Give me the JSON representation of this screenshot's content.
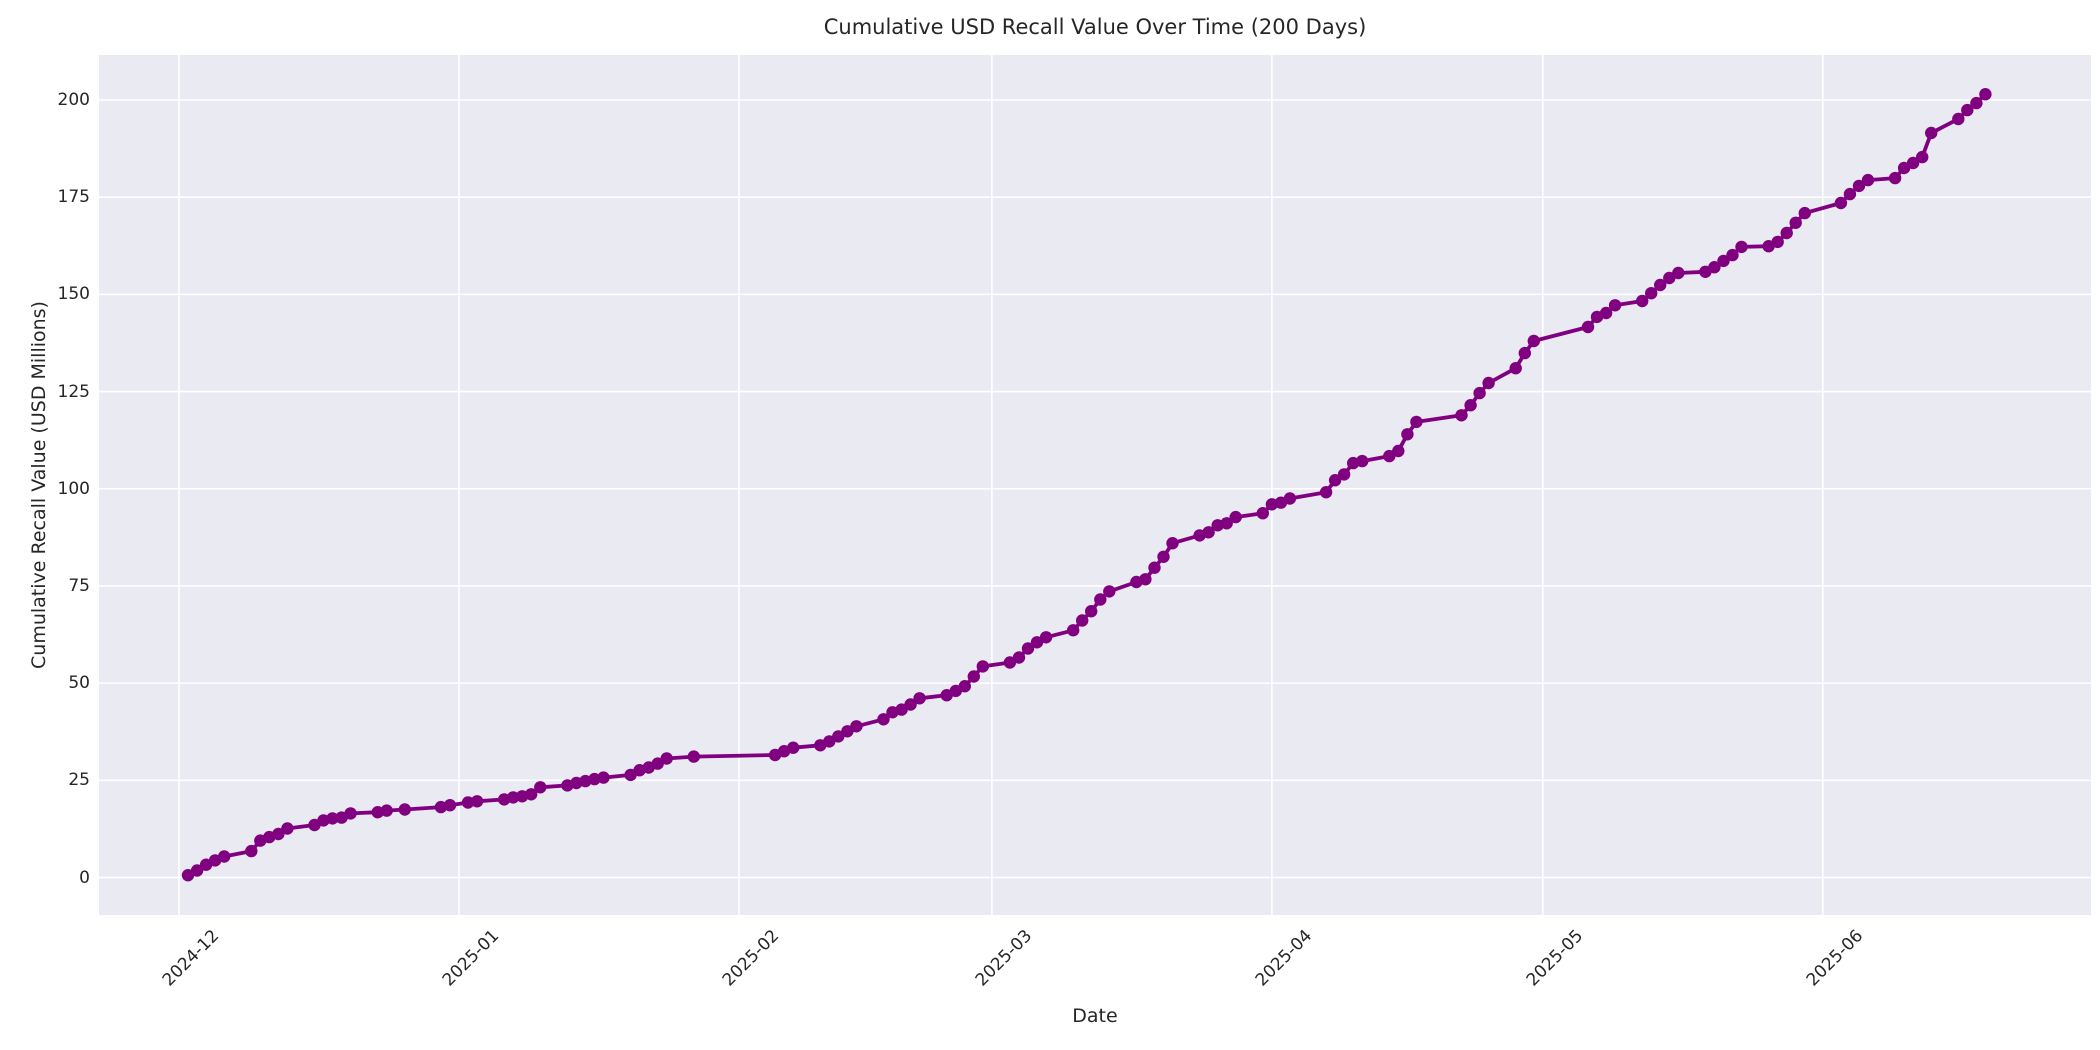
{
  "figure": {
    "title": "Cumulative USD Recall Value Over Time (200 Days)",
    "xlabel": "Date",
    "ylabel": "Cumulative Recall Value (USD Millions)"
  },
  "style": {
    "figure_bg": "#ffffff",
    "axes_bg": "#eaeaf2",
    "grid_color": "#ffffff",
    "text_color": "#262626",
    "line_color": "#800080"
  },
  "chart_data": {
    "type": "line",
    "title": "Cumulative USD Recall Value Over Time (200 Days)",
    "xlabel": "Date",
    "ylabel": "Cumulative Recall Value (USD Millions)",
    "grid": true,
    "legend": "none",
    "marker": "circle",
    "line_color": "#800080",
    "ylim": [
      -9.5,
      211.5
    ],
    "y_ticks": [
      0,
      25,
      50,
      75,
      100,
      125,
      150,
      175,
      200
    ],
    "x_ticks": [
      {
        "label": "2024-12",
        "date": "2024-12-01"
      },
      {
        "label": "2025-01",
        "date": "2025-01-01"
      },
      {
        "label": "2025-02",
        "date": "2025-02-01"
      },
      {
        "label": "2025-03",
        "date": "2025-03-01"
      },
      {
        "label": "2025-04",
        "date": "2025-04-01"
      },
      {
        "label": "2025-05",
        "date": "2025-05-01"
      },
      {
        "label": "2025-06",
        "date": "2025-06-01"
      }
    ],
    "series": [
      {
        "name": "Cumulative Recall Value",
        "points": [
          [
            "2024-12-02",
            0.6
          ],
          [
            "2024-12-03",
            1.8
          ],
          [
            "2024-12-04",
            3.3
          ],
          [
            "2024-12-05",
            4.4
          ],
          [
            "2024-12-06",
            5.4
          ],
          [
            "2024-12-09",
            6.8
          ],
          [
            "2024-12-10",
            9.5
          ],
          [
            "2024-12-11",
            10.4
          ],
          [
            "2024-12-12",
            11.2
          ],
          [
            "2024-12-13",
            12.6
          ],
          [
            "2024-12-16",
            13.5
          ],
          [
            "2024-12-17",
            14.7
          ],
          [
            "2024-12-18",
            15.2
          ],
          [
            "2024-12-19",
            15.4
          ],
          [
            "2024-12-20",
            16.5
          ],
          [
            "2024-12-23",
            16.8
          ],
          [
            "2024-12-24",
            17.2
          ],
          [
            "2024-12-26",
            17.5
          ],
          [
            "2024-12-30",
            18.1
          ],
          [
            "2024-12-31",
            18.6
          ],
          [
            "2025-01-02",
            19.3
          ],
          [
            "2025-01-03",
            19.6
          ],
          [
            "2025-01-06",
            20.1
          ],
          [
            "2025-01-07",
            20.6
          ],
          [
            "2025-01-08",
            20.9
          ],
          [
            "2025-01-09",
            21.4
          ],
          [
            "2025-01-10",
            23.2
          ],
          [
            "2025-01-13",
            23.7
          ],
          [
            "2025-01-14",
            24.3
          ],
          [
            "2025-01-15",
            24.8
          ],
          [
            "2025-01-16",
            25.3
          ],
          [
            "2025-01-17",
            25.7
          ],
          [
            "2025-01-20",
            26.4
          ],
          [
            "2025-01-21",
            27.6
          ],
          [
            "2025-01-22",
            28.3
          ],
          [
            "2025-01-23",
            29.3
          ],
          [
            "2025-01-24",
            30.6
          ],
          [
            "2025-01-27",
            31.1
          ],
          [
            "2025-02-05",
            31.5
          ],
          [
            "2025-02-06",
            32.5
          ],
          [
            "2025-02-07",
            33.4
          ],
          [
            "2025-02-10",
            34.0
          ],
          [
            "2025-02-11",
            35.0
          ],
          [
            "2025-02-12",
            36.3
          ],
          [
            "2025-02-13",
            37.6
          ],
          [
            "2025-02-14",
            38.9
          ],
          [
            "2025-02-17",
            40.7
          ],
          [
            "2025-02-18",
            42.5
          ],
          [
            "2025-02-19",
            43.2
          ],
          [
            "2025-02-20",
            44.5
          ],
          [
            "2025-02-21",
            46.1
          ],
          [
            "2025-02-24",
            46.9
          ],
          [
            "2025-02-25",
            48.0
          ],
          [
            "2025-02-26",
            49.2
          ],
          [
            "2025-02-27",
            51.7
          ],
          [
            "2025-02-28",
            54.3
          ],
          [
            "2025-03-03",
            55.3
          ],
          [
            "2025-03-04",
            56.6
          ],
          [
            "2025-03-05",
            58.9
          ],
          [
            "2025-03-06",
            60.5
          ],
          [
            "2025-03-07",
            61.8
          ],
          [
            "2025-03-10",
            63.6
          ],
          [
            "2025-03-11",
            66.1
          ],
          [
            "2025-03-12",
            68.5
          ],
          [
            "2025-03-13",
            71.5
          ],
          [
            "2025-03-14",
            73.6
          ],
          [
            "2025-03-17",
            76.0
          ],
          [
            "2025-03-18",
            76.7
          ],
          [
            "2025-03-19",
            79.7
          ],
          [
            "2025-03-20",
            82.5
          ],
          [
            "2025-03-21",
            86.0
          ],
          [
            "2025-03-24",
            88.0
          ],
          [
            "2025-03-25",
            88.8
          ],
          [
            "2025-03-26",
            90.6
          ],
          [
            "2025-03-27",
            91.1
          ],
          [
            "2025-03-28",
            92.7
          ],
          [
            "2025-03-31",
            93.7
          ],
          [
            "2025-04-01",
            96.0
          ],
          [
            "2025-04-02",
            96.4
          ],
          [
            "2025-04-03",
            97.5
          ],
          [
            "2025-04-07",
            99.1
          ],
          [
            "2025-04-08",
            102.2
          ],
          [
            "2025-04-09",
            103.7
          ],
          [
            "2025-04-10",
            106.6
          ],
          [
            "2025-04-11",
            107.1
          ],
          [
            "2025-04-14",
            108.4
          ],
          [
            "2025-04-15",
            109.7
          ],
          [
            "2025-04-16",
            114.0
          ],
          [
            "2025-04-17",
            117.2
          ],
          [
            "2025-04-22",
            118.9
          ],
          [
            "2025-04-23",
            121.5
          ],
          [
            "2025-04-24",
            124.6
          ],
          [
            "2025-04-25",
            127.2
          ],
          [
            "2025-04-28",
            131.0
          ],
          [
            "2025-04-29",
            134.9
          ],
          [
            "2025-04-30",
            138.0
          ],
          [
            "2025-05-06",
            141.6
          ],
          [
            "2025-05-07",
            144.2
          ],
          [
            "2025-05-08",
            145.2
          ],
          [
            "2025-05-09",
            147.2
          ],
          [
            "2025-05-12",
            148.3
          ],
          [
            "2025-05-13",
            150.3
          ],
          [
            "2025-05-14",
            152.4
          ],
          [
            "2025-05-15",
            154.2
          ],
          [
            "2025-05-16",
            155.5
          ],
          [
            "2025-05-19",
            155.8
          ],
          [
            "2025-05-20",
            157.0
          ],
          [
            "2025-05-21",
            158.6
          ],
          [
            "2025-05-22",
            160.1
          ],
          [
            "2025-05-23",
            162.2
          ],
          [
            "2025-05-26",
            162.4
          ],
          [
            "2025-05-27",
            163.5
          ],
          [
            "2025-05-28",
            165.8
          ],
          [
            "2025-05-29",
            168.4
          ],
          [
            "2025-05-30",
            170.9
          ],
          [
            "2025-06-03",
            173.5
          ],
          [
            "2025-06-04",
            175.8
          ],
          [
            "2025-06-05",
            177.9
          ],
          [
            "2025-06-06",
            179.4
          ],
          [
            "2025-06-09",
            179.9
          ],
          [
            "2025-06-10",
            182.5
          ],
          [
            "2025-06-11",
            183.8
          ],
          [
            "2025-06-12",
            185.3
          ],
          [
            "2025-06-13",
            191.5
          ],
          [
            "2025-06-16",
            195.1
          ],
          [
            "2025-06-17",
            197.4
          ],
          [
            "2025-06-18",
            199.2
          ],
          [
            "2025-06-19",
            201.5
          ]
        ]
      }
    ]
  }
}
